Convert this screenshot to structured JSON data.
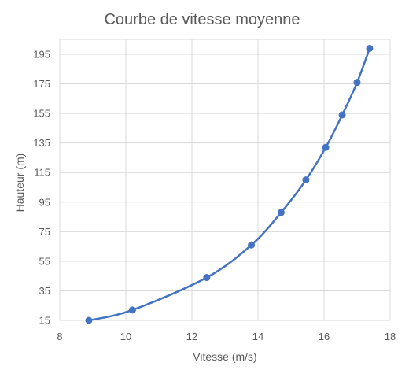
{
  "chart_data": {
    "type": "scatter",
    "title": "Courbe de vitesse moyenne",
    "xlabel": "Vitesse (m/s)",
    "ylabel": "Hauteur (m)",
    "xlim": [
      8,
      18
    ],
    "ylim": [
      15,
      195
    ],
    "xticks": [
      "8",
      "10",
      "12",
      "14",
      "16",
      "18"
    ],
    "yticks": [
      "15",
      "35",
      "55",
      "75",
      "95",
      "115",
      "135",
      "155",
      "175",
      "195"
    ],
    "grid": true,
    "legend": "none",
    "series": [
      {
        "color": "#4472c4",
        "points": [
          {
            "x": 8.88,
            "y": 15
          },
          {
            "x": 10.2,
            "y": 22
          },
          {
            "x": 12.45,
            "y": 44
          },
          {
            "x": 13.8,
            "y": 66
          },
          {
            "x": 14.7,
            "y": 88
          },
          {
            "x": 15.45,
            "y": 110
          },
          {
            "x": 16.05,
            "y": 132
          },
          {
            "x": 16.55,
            "y": 154
          },
          {
            "x": 17.0,
            "y": 176
          },
          {
            "x": 17.38,
            "y": 199
          }
        ]
      }
    ]
  }
}
